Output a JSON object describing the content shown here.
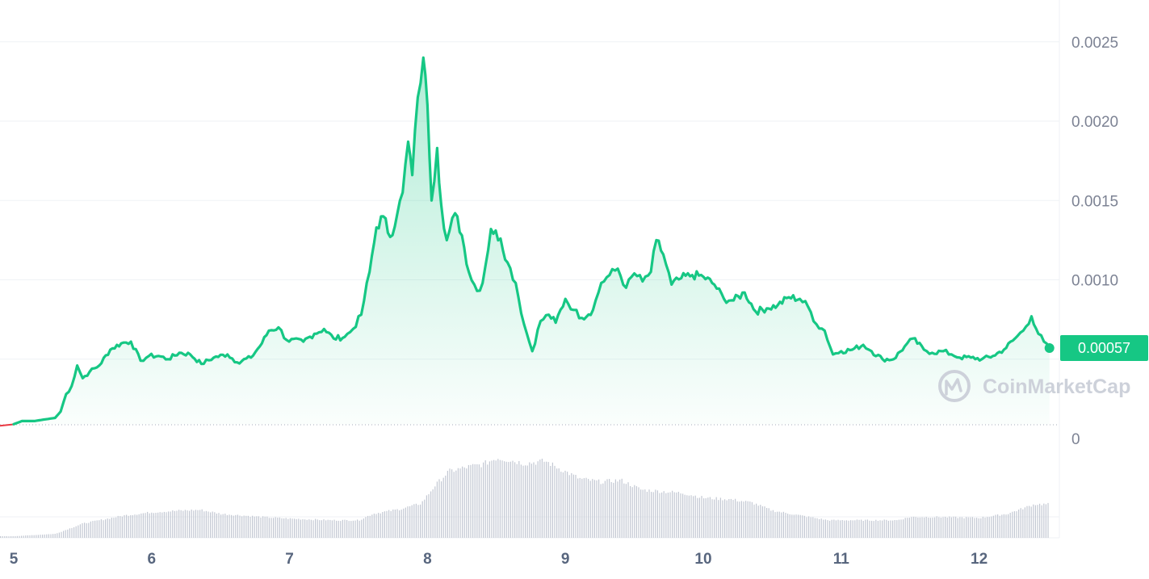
{
  "watermark": "CoinMarketCap",
  "colors": {
    "line": "#16c784",
    "start_line": "#ea3943",
    "volume": "#c3c8d3",
    "grid": "#eff2f5",
    "axis_text": "#7d8394"
  },
  "chart_data": {
    "type": "line",
    "title": "",
    "xlabel": "",
    "ylabel": "",
    "x_ticks": [
      "5",
      "6",
      "7",
      "8",
      "9",
      "10",
      "11",
      "12"
    ],
    "y_ticks": [
      "0",
      "0.0010",
      "0.0015",
      "0.0020",
      "0.0025"
    ],
    "y_tick_values": [
      0,
      0.001,
      0.0015,
      0.002,
      0.0025
    ],
    "ylim": [
      0,
      0.0026
    ],
    "xlim": [
      5,
      12.58
    ],
    "current_price_label": "0.00057",
    "current_price": 0.00057,
    "baseline": 9e-05,
    "price_series": {
      "name": "",
      "points": [
        [
          5.0,
          9e-05
        ],
        [
          5.06,
          0.00011
        ],
        [
          5.15,
          0.00011
        ],
        [
          5.3,
          0.00013
        ],
        [
          5.34,
          0.00017
        ],
        [
          5.38,
          0.00028
        ],
        [
          5.42,
          0.00033
        ],
        [
          5.46,
          0.00046
        ],
        [
          5.5,
          0.00038
        ],
        [
          5.55,
          0.00042
        ],
        [
          5.62,
          0.00046
        ],
        [
          5.7,
          0.00056
        ],
        [
          5.78,
          0.0006
        ],
        [
          5.85,
          0.00061
        ],
        [
          5.92,
          0.00049
        ],
        [
          5.98,
          0.00052
        ],
        [
          6.05,
          0.00052
        ],
        [
          6.12,
          0.0005
        ],
        [
          6.2,
          0.00054
        ],
        [
          6.28,
          0.00053
        ],
        [
          6.36,
          0.00047
        ],
        [
          6.45,
          0.00051
        ],
        [
          6.55,
          0.00053
        ],
        [
          6.62,
          0.00048
        ],
        [
          6.72,
          0.00051
        ],
        [
          6.8,
          0.0006
        ],
        [
          6.85,
          0.00068
        ],
        [
          6.92,
          0.0007
        ],
        [
          6.98,
          0.00062
        ],
        [
          7.1,
          0.00061
        ],
        [
          7.18,
          0.00066
        ],
        [
          7.25,
          0.00069
        ],
        [
          7.32,
          0.00063
        ],
        [
          7.4,
          0.00064
        ],
        [
          7.46,
          0.00069
        ],
        [
          7.52,
          0.00078
        ],
        [
          7.58,
          0.00105
        ],
        [
          7.63,
          0.00133
        ],
        [
          7.68,
          0.0014
        ],
        [
          7.73,
          0.00127
        ],
        [
          7.78,
          0.00141
        ],
        [
          7.82,
          0.00155
        ],
        [
          7.86,
          0.00187
        ],
        [
          7.89,
          0.00166
        ],
        [
          7.93,
          0.00215
        ],
        [
          7.97,
          0.0024
        ],
        [
          8.0,
          0.0021
        ],
        [
          8.03,
          0.0015
        ],
        [
          8.07,
          0.00183
        ],
        [
          8.1,
          0.00147
        ],
        [
          8.14,
          0.00125
        ],
        [
          8.2,
          0.00142
        ],
        [
          8.25,
          0.00128
        ],
        [
          8.3,
          0.00105
        ],
        [
          8.36,
          0.00093
        ],
        [
          8.4,
          0.00098
        ],
        [
          8.46,
          0.00132
        ],
        [
          8.53,
          0.00126
        ],
        [
          8.58,
          0.00111
        ],
        [
          8.64,
          0.00098
        ],
        [
          8.7,
          0.00072
        ],
        [
          8.76,
          0.00055
        ],
        [
          8.82,
          0.00074
        ],
        [
          8.88,
          0.00078
        ],
        [
          8.93,
          0.00073
        ],
        [
          9.0,
          0.00088
        ],
        [
          9.06,
          0.00081
        ],
        [
          9.12,
          0.00076
        ],
        [
          9.2,
          0.00081
        ],
        [
          9.26,
          0.00098
        ],
        [
          9.32,
          0.00103
        ],
        [
          9.38,
          0.00107
        ],
        [
          9.44,
          0.00095
        ],
        [
          9.5,
          0.00104
        ],
        [
          9.56,
          0.00099
        ],
        [
          9.62,
          0.00105
        ],
        [
          9.66,
          0.00125
        ],
        [
          9.71,
          0.00116
        ],
        [
          9.77,
          0.00097
        ],
        [
          9.84,
          0.00101
        ],
        [
          9.92,
          0.00103
        ],
        [
          10.0,
          0.00102
        ],
        [
          10.08,
          0.00097
        ],
        [
          10.15,
          0.00088
        ],
        [
          10.22,
          0.00087
        ],
        [
          10.3,
          0.00092
        ],
        [
          10.38,
          0.0008
        ],
        [
          10.46,
          0.00082
        ],
        [
          10.54,
          0.00084
        ],
        [
          10.62,
          0.00089
        ],
        [
          10.7,
          0.00088
        ],
        [
          10.76,
          0.00083
        ],
        [
          10.82,
          0.00072
        ],
        [
          10.88,
          0.00068
        ],
        [
          10.94,
          0.00053
        ],
        [
          11.0,
          0.00055
        ],
        [
          11.08,
          0.00056
        ],
        [
          11.16,
          0.00059
        ],
        [
          11.22,
          0.00055
        ],
        [
          11.3,
          0.0005
        ],
        [
          11.38,
          0.0005
        ],
        [
          11.46,
          0.00058
        ],
        [
          11.52,
          0.00063
        ],
        [
          11.6,
          0.00056
        ],
        [
          11.66,
          0.00054
        ],
        [
          11.74,
          0.00055
        ],
        [
          11.8,
          0.00053
        ],
        [
          11.86,
          0.00051
        ],
        [
          11.94,
          0.00051
        ],
        [
          12.02,
          0.0005
        ],
        [
          12.1,
          0.00052
        ],
        [
          12.18,
          0.00056
        ],
        [
          12.26,
          0.00063
        ],
        [
          12.32,
          0.00068
        ],
        [
          12.38,
          0.00077
        ],
        [
          12.43,
          0.00066
        ],
        [
          12.47,
          0.00061
        ],
        [
          12.51,
          0.00057
        ]
      ]
    },
    "volume_series": {
      "name": "",
      "points": [
        [
          5.0,
          0.02
        ],
        [
          5.3,
          0.05
        ],
        [
          5.5,
          0.18
        ],
        [
          5.8,
          0.28
        ],
        [
          6.0,
          0.32
        ],
        [
          6.2,
          0.34
        ],
        [
          6.35,
          0.35
        ],
        [
          6.5,
          0.3
        ],
        [
          6.8,
          0.26
        ],
        [
          7.0,
          0.24
        ],
        [
          7.3,
          0.22
        ],
        [
          7.5,
          0.22
        ],
        [
          7.6,
          0.3
        ],
        [
          7.8,
          0.36
        ],
        [
          7.95,
          0.43
        ],
        [
          8.05,
          0.65
        ],
        [
          8.15,
          0.83
        ],
        [
          8.3,
          0.89
        ],
        [
          8.4,
          0.92
        ],
        [
          8.5,
          1.0
        ],
        [
          8.6,
          0.97
        ],
        [
          8.7,
          0.93
        ],
        [
          8.85,
          0.96
        ],
        [
          8.95,
          0.87
        ],
        [
          9.1,
          0.74
        ],
        [
          9.25,
          0.7
        ],
        [
          9.4,
          0.72
        ],
        [
          9.55,
          0.6
        ],
        [
          9.7,
          0.58
        ],
        [
          9.85,
          0.56
        ],
        [
          10.0,
          0.5
        ],
        [
          10.2,
          0.48
        ],
        [
          10.35,
          0.44
        ],
        [
          10.5,
          0.34
        ],
        [
          10.7,
          0.28
        ],
        [
          10.9,
          0.22
        ],
        [
          11.1,
          0.22
        ],
        [
          11.4,
          0.22
        ],
        [
          11.5,
          0.26
        ],
        [
          11.7,
          0.26
        ],
        [
          12.0,
          0.25
        ],
        [
          12.2,
          0.3
        ],
        [
          12.4,
          0.42
        ],
        [
          12.5,
          0.42
        ],
        [
          12.52,
          0.38
        ]
      ]
    }
  }
}
